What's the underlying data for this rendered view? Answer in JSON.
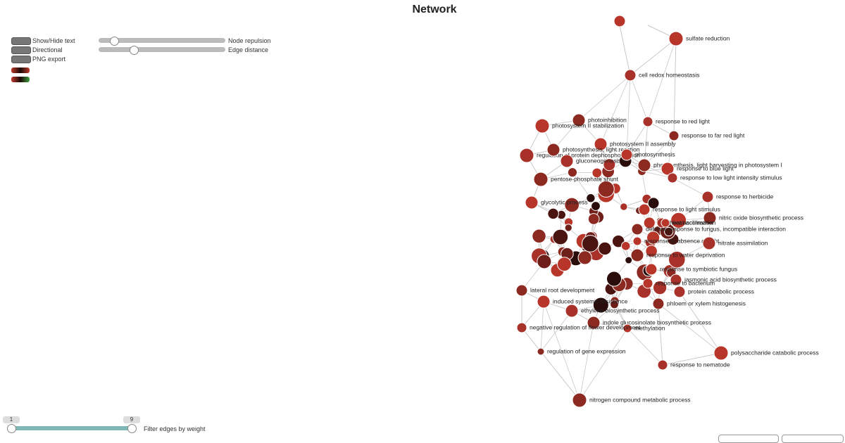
{
  "header": {
    "title": "Network"
  },
  "controls": {
    "show_hide_text": "Show/Hide text",
    "directional": "Directional",
    "png_export": "PNG export",
    "node_repulsion": "Node repulsion",
    "edge_distance": "Edge distance",
    "filter_label": "Filter edges by weight",
    "filter_min": "1",
    "filter_max": "9"
  },
  "network": {
    "nodes": [
      {
        "label": "sulfate reduction"
      },
      {
        "label": "cell redox homeostasis"
      },
      {
        "label": "photoinhibition"
      },
      {
        "label": "photosystem II stabilization"
      },
      {
        "label": "response to red light"
      },
      {
        "label": "response to far red light"
      },
      {
        "label": "photosystem II assembly"
      },
      {
        "label": "regulation of protein dephosphorylation"
      },
      {
        "label": "photosynthesis, light reaction"
      },
      {
        "label": "photosynthesis"
      },
      {
        "label": "gluconeogenesis"
      },
      {
        "label": "photosynthesis, light harvesting in photosystem I"
      },
      {
        "label": "response to blue light"
      },
      {
        "label": "response to low light intensity stimulus"
      },
      {
        "label": "pentose-phosphate shunt"
      },
      {
        "label": "glycolytic process"
      },
      {
        "label": "response to herbicide"
      },
      {
        "label": "nitric oxide biosynthetic process"
      },
      {
        "label": "response to light stimulus"
      },
      {
        "label": "heat acclimation"
      },
      {
        "label": "defense response to fungus, incompatible interaction"
      },
      {
        "label": "response to absence of light"
      },
      {
        "label": "nitrate assimilation"
      },
      {
        "label": "response to water deprivation"
      },
      {
        "label": "response to symbiotic fungus"
      },
      {
        "label": "jasmonic acid biosynthetic process"
      },
      {
        "label": "lateral root development"
      },
      {
        "label": "response to bacterium"
      },
      {
        "label": "protein catabolic process"
      },
      {
        "label": "phloem or xylem histogenesis"
      },
      {
        "label": "induced systemic resistance"
      },
      {
        "label": "ethylene biosynthetic process"
      },
      {
        "label": "indole glucosinolate biosynthetic process"
      },
      {
        "label": "methylation"
      },
      {
        "label": "negative regulation of flower development"
      },
      {
        "label": "regulation of gene expression"
      },
      {
        "label": "polysaccharide catabolic process"
      },
      {
        "label": "response to nematode"
      },
      {
        "label": "nitrogen compound metabolic process"
      },
      {
        "label": "heat acclimation"
      }
    ]
  }
}
